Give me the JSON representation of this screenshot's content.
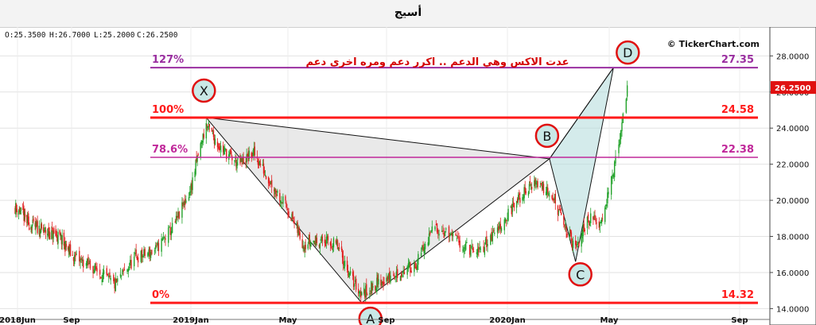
{
  "title": "أسيج",
  "ohlc": {
    "open": "O:25.3500",
    "high": "H:26.7000",
    "low": "L:25.2000",
    "close": "C:26.2500"
  },
  "watermark": "© TickerChart.com",
  "annotation": "عدت الاكس وهي الدعم .. اكرر دعم ومره اخرى دعم",
  "colors": {
    "candle_up": "#22a22a",
    "candle_down": "#e02020",
    "fib_main": "#ff1a1a",
    "fib_127": "#9a2fa0",
    "fib_786": "#c0289a",
    "annotation": "#d40000",
    "pattern_xab": "#d7d7d7",
    "pattern_bcd": "#b8dede",
    "price_tag": "#e01010"
  },
  "fib_levels": [
    {
      "pct": "127%",
      "price": "27.35",
      "value": 27.35
    },
    {
      "pct": "100%",
      "price": "24.58",
      "value": 24.58
    },
    {
      "pct": "78.6%",
      "price": "22.38",
      "value": 22.38
    },
    {
      "pct": "0%",
      "price": "14.32",
      "value": 14.32
    }
  ],
  "chart_data": {
    "type": "candlestick",
    "x_ticks": [
      "2018Jun",
      "Sep",
      "2019Jan",
      "May",
      "Sep",
      "2020Jan",
      "May",
      "Sep"
    ],
    "y_ticks": [
      "14.0000",
      "16.0000",
      "18.0000",
      "20.0000",
      "22.0000",
      "24.0000",
      "26.0000",
      "28.0000"
    ],
    "ylim": [
      13.4,
      29.6
    ],
    "last_price": "26.2500",
    "pattern_points": [
      {
        "label": "X",
        "date": "2019-01-20",
        "price": 24.58
      },
      {
        "label": "A",
        "date": "2019-08-01",
        "price": 14.32
      },
      {
        "label": "B",
        "date": "2020-02-20",
        "price": 22.3
      },
      {
        "label": "C",
        "date": "2020-03-22",
        "price": 16.6
      },
      {
        "label": "D",
        "date": "2020-05-05",
        "price": 27.35
      }
    ],
    "series": [
      {
        "date": "2018-06-01",
        "close": 19.6
      },
      {
        "date": "2018-06-20",
        "close": 18.7
      },
      {
        "date": "2018-07-15",
        "close": 18.3
      },
      {
        "date": "2018-08-10",
        "close": 18.0
      },
      {
        "date": "2018-09-05",
        "close": 16.8
      },
      {
        "date": "2018-09-25",
        "close": 16.2
      },
      {
        "date": "2018-10-15",
        "close": 15.3
      },
      {
        "date": "2018-11-05",
        "close": 16.8
      },
      {
        "date": "2018-11-25",
        "close": 17.2
      },
      {
        "date": "2018-12-15",
        "close": 18.6
      },
      {
        "date": "2018-12-31",
        "close": 20.5
      },
      {
        "date": "2019-01-10",
        "close": 22.5
      },
      {
        "date": "2019-01-20",
        "close": 24.2
      },
      {
        "date": "2019-02-05",
        "close": 23.0
      },
      {
        "date": "2019-03-01",
        "close": 22.0
      },
      {
        "date": "2019-03-20",
        "close": 22.6
      },
      {
        "date": "2019-04-10",
        "close": 21.0
      },
      {
        "date": "2019-05-01",
        "close": 19.5
      },
      {
        "date": "2019-05-20",
        "close": 17.6
      },
      {
        "date": "2019-06-10",
        "close": 17.8
      },
      {
        "date": "2019-07-01",
        "close": 17.5
      },
      {
        "date": "2019-07-20",
        "close": 15.6
      },
      {
        "date": "2019-08-01",
        "close": 14.8
      },
      {
        "date": "2019-08-20",
        "close": 15.4
      },
      {
        "date": "2019-09-10",
        "close": 15.8
      },
      {
        "date": "2019-10-01",
        "close": 16.5
      },
      {
        "date": "2019-10-20",
        "close": 18.6
      },
      {
        "date": "2019-11-10",
        "close": 17.8
      },
      {
        "date": "2019-12-01",
        "close": 17.0
      },
      {
        "date": "2019-12-20",
        "close": 18.3
      },
      {
        "date": "2020-01-10",
        "close": 19.8
      },
      {
        "date": "2020-02-01",
        "close": 21.0
      },
      {
        "date": "2020-02-20",
        "close": 20.6
      },
      {
        "date": "2020-03-05",
        "close": 19.0
      },
      {
        "date": "2020-03-22",
        "close": 17.2
      },
      {
        "date": "2020-04-05",
        "close": 19.0
      },
      {
        "date": "2020-04-20",
        "close": 18.8
      },
      {
        "date": "2020-05-01",
        "close": 20.5
      },
      {
        "date": "2020-05-10",
        "close": 23.0
      },
      {
        "date": "2020-05-18",
        "close": 26.25
      }
    ]
  }
}
